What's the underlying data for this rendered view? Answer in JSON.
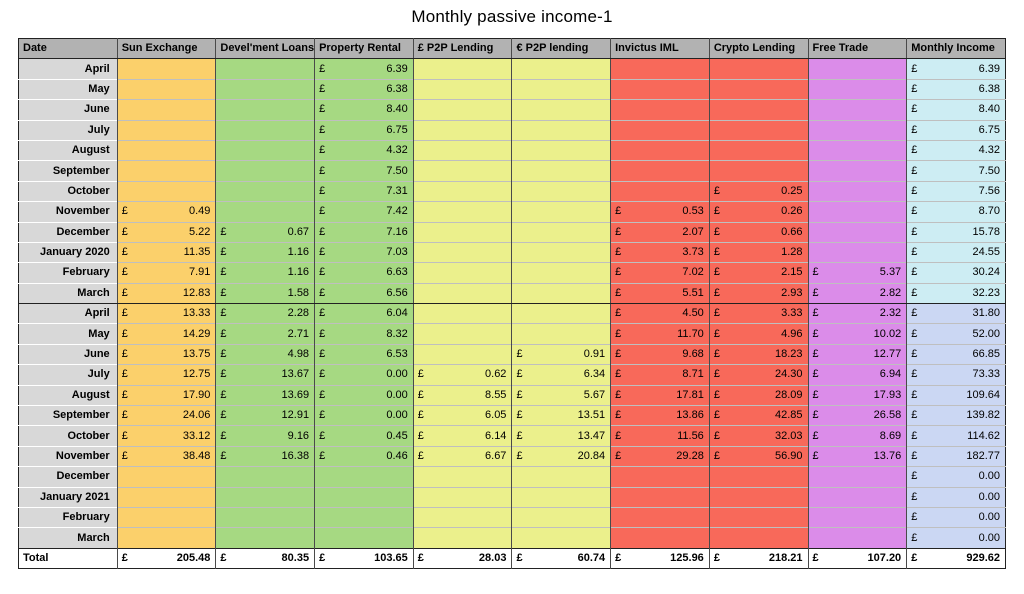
{
  "title": "Monthly passive income-1",
  "currency_symbol": "£",
  "palette": {
    "header_bg": "#b2b2b2",
    "date_bg": "#d8d8d8",
    "total_bg": "#ffffff",
    "column_colors": [
      "#fbd06b",
      "#a6d982",
      "#a6d982",
      "#ebf08c",
      "#ebf08c",
      "#f8695a",
      "#f8695a",
      "#db8ce9"
    ],
    "income_year1_bg": "#cdedf3",
    "income_year2_bg": "#cbd7f3"
  },
  "chart_data": {
    "type": "table",
    "title": "Monthly passive income-1",
    "columns": [
      "Date",
      "Sun Exchange",
      "Devel'ment Loans",
      "Property Rental",
      "£ P2P Lending",
      "€ P2P lending",
      "Invictus IML",
      "Crypto Lending",
      "Free Trade",
      "Monthly Income"
    ],
    "rows": [
      {
        "date": "April",
        "year": 1,
        "values": [
          null,
          null,
          "6.39",
          null,
          null,
          null,
          null,
          null,
          "6.39"
        ]
      },
      {
        "date": "May",
        "year": 1,
        "values": [
          null,
          null,
          "6.38",
          null,
          null,
          null,
          null,
          null,
          "6.38"
        ]
      },
      {
        "date": "June",
        "year": 1,
        "values": [
          null,
          null,
          "8.40",
          null,
          null,
          null,
          null,
          null,
          "8.40"
        ]
      },
      {
        "date": "July",
        "year": 1,
        "values": [
          null,
          null,
          "6.75",
          null,
          null,
          null,
          null,
          null,
          "6.75"
        ]
      },
      {
        "date": "August",
        "year": 1,
        "values": [
          null,
          null,
          "4.32",
          null,
          null,
          null,
          null,
          null,
          "4.32"
        ]
      },
      {
        "date": "September",
        "year": 1,
        "values": [
          null,
          null,
          "7.50",
          null,
          null,
          null,
          null,
          null,
          "7.50"
        ]
      },
      {
        "date": "October",
        "year": 1,
        "values": [
          null,
          null,
          "7.31",
          null,
          null,
          null,
          "0.25",
          null,
          "7.56"
        ]
      },
      {
        "date": "November",
        "year": 1,
        "values": [
          "0.49",
          null,
          "7.42",
          null,
          null,
          "0.53",
          "0.26",
          null,
          "8.70"
        ]
      },
      {
        "date": "December",
        "year": 1,
        "values": [
          "5.22",
          "0.67",
          "7.16",
          null,
          null,
          "2.07",
          "0.66",
          null,
          "15.78"
        ]
      },
      {
        "date": "January 2020",
        "year": 1,
        "values": [
          "11.35",
          "1.16",
          "7.03",
          null,
          null,
          "3.73",
          "1.28",
          null,
          "24.55"
        ]
      },
      {
        "date": "February",
        "year": 1,
        "values": [
          "7.91",
          "1.16",
          "6.63",
          null,
          null,
          "7.02",
          "2.15",
          "5.37",
          "30.24"
        ]
      },
      {
        "date": "March",
        "year": 1,
        "thick_bottom": true,
        "values": [
          "12.83",
          "1.58",
          "6.56",
          null,
          null,
          "5.51",
          "2.93",
          "2.82",
          "32.23"
        ]
      },
      {
        "date": "April",
        "year": 2,
        "values": [
          "13.33",
          "2.28",
          "6.04",
          null,
          null,
          "4.50",
          "3.33",
          "2.32",
          "31.80"
        ]
      },
      {
        "date": "May",
        "year": 2,
        "values": [
          "14.29",
          "2.71",
          "8.32",
          null,
          null,
          "11.70",
          "4.96",
          "10.02",
          "52.00"
        ]
      },
      {
        "date": "June",
        "year": 2,
        "values": [
          "13.75",
          "4.98",
          "6.53",
          null,
          "0.91",
          "9.68",
          "18.23",
          "12.77",
          "66.85"
        ]
      },
      {
        "date": "July",
        "year": 2,
        "values": [
          "12.75",
          "13.67",
          "0.00",
          "0.62",
          "6.34",
          "8.71",
          "24.30",
          "6.94",
          "73.33"
        ]
      },
      {
        "date": "August",
        "year": 2,
        "values": [
          "17.90",
          "13.69",
          "0.00",
          "8.55",
          "5.67",
          "17.81",
          "28.09",
          "17.93",
          "109.64"
        ]
      },
      {
        "date": "September",
        "year": 2,
        "values": [
          "24.06",
          "12.91",
          "0.00",
          "6.05",
          "13.51",
          "13.86",
          "42.85",
          "26.58",
          "139.82"
        ]
      },
      {
        "date": "October",
        "year": 2,
        "values": [
          "33.12",
          "9.16",
          "0.45",
          "6.14",
          "13.47",
          "11.56",
          "32.03",
          "8.69",
          "114.62"
        ]
      },
      {
        "date": "November",
        "year": 2,
        "values": [
          "38.48",
          "16.38",
          "0.46",
          "6.67",
          "20.84",
          "29.28",
          "56.90",
          "13.76",
          "182.77"
        ]
      },
      {
        "date": "December",
        "year": 2,
        "values": [
          null,
          null,
          null,
          null,
          null,
          null,
          null,
          null,
          "0.00"
        ]
      },
      {
        "date": "January 2021",
        "year": 2,
        "values": [
          null,
          null,
          null,
          null,
          null,
          null,
          null,
          null,
          "0.00"
        ]
      },
      {
        "date": "February",
        "year": 2,
        "values": [
          null,
          null,
          null,
          null,
          null,
          null,
          null,
          null,
          "0.00"
        ]
      },
      {
        "date": "March",
        "year": 2,
        "values": [
          null,
          null,
          null,
          null,
          null,
          null,
          null,
          null,
          "0.00"
        ]
      }
    ],
    "total": {
      "label": "Total",
      "values": [
        "205.48",
        "80.35",
        "103.65",
        "28.03",
        "60.74",
        "125.96",
        "218.21",
        "107.20",
        "929.62"
      ]
    }
  }
}
